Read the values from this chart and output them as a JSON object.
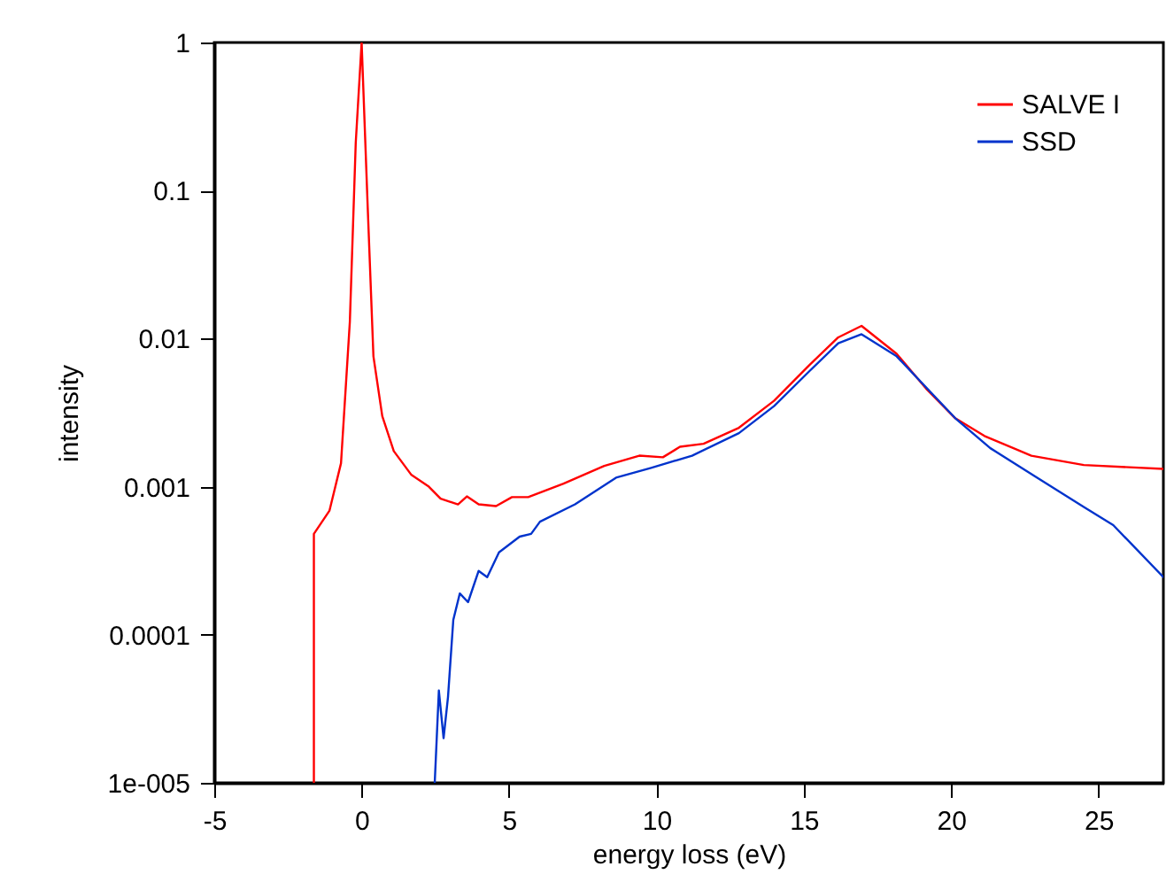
{
  "chart_data": {
    "type": "line",
    "xlabel": "energy loss (eV)",
    "ylabel": "intensity",
    "log": "y",
    "grid": false,
    "legend": "top right",
    "marker": "none",
    "line_style": "solid",
    "xlim": [
      -5,
      27.2
    ],
    "xticks": [
      -5,
      0,
      5,
      10,
      15,
      20,
      25
    ],
    "ylim": [
      1e-05,
      1
    ],
    "yticks": [
      {
        "value": 1e-05,
        "label": "1e-005"
      },
      0.0001,
      0.001,
      0.01,
      0.1,
      1
    ],
    "series": [
      {
        "name": "SALVE I",
        "color": "#ff0000",
        "x": [
          -1.62,
          -1.62,
          -1.09,
          -0.7,
          -0.4,
          -0.2,
          0,
          0.2,
          0.4,
          0.7,
          1.09,
          1.69,
          2.28,
          2.68,
          3.27,
          3.57,
          3.97,
          4.56,
          5.1,
          5.65,
          6.85,
          8.23,
          9.42,
          10.22,
          10.8,
          11.6,
          12.8,
          13.99,
          15.18,
          16.17,
          16.96,
          18.15,
          19.15,
          20.14,
          21.13,
          22.72,
          24.5,
          27.2
        ],
        "values": [
          1e-05,
          0.00048,
          0.00069,
          0.00144,
          0.013,
          0.21,
          1,
          0.083,
          0.0076,
          0.003,
          0.00174,
          0.0012,
          0.001,
          0.00083,
          0.00076,
          0.00086,
          0.00076,
          0.00074,
          0.00085,
          0.00085,
          0.00105,
          0.00138,
          0.00162,
          0.00158,
          0.00186,
          0.00195,
          0.0025,
          0.0038,
          0.0066,
          0.0102,
          0.0122,
          0.0079,
          0.0046,
          0.0029,
          0.0022,
          0.00162,
          0.0014,
          0.00132
        ]
      },
      {
        "name": "SSD",
        "color": "#0033cc",
        "x": [
          2.48,
          2.62,
          2.78,
          2.93,
          3.11,
          3.33,
          3.61,
          3.97,
          4.26,
          4.66,
          5.36,
          5.75,
          6.05,
          7.24,
          8.63,
          9.82,
          11.21,
          12.8,
          13.99,
          15.18,
          16.17,
          16.96,
          18.15,
          20.14,
          21.33,
          22.92,
          24.5,
          25.5,
          27.2
        ],
        "values": [
          1e-05,
          4.2e-05,
          2e-05,
          3.8e-05,
          0.000126,
          0.00019,
          0.000166,
          0.00027,
          0.000245,
          0.00036,
          0.00046,
          0.00048,
          0.00058,
          0.00076,
          0.00115,
          0.00134,
          0.00162,
          0.0023,
          0.0035,
          0.006,
          0.0093,
          0.0107,
          0.0076,
          0.0029,
          0.00182,
          0.00115,
          0.00073,
          0.00055,
          0.000245
        ]
      }
    ]
  }
}
